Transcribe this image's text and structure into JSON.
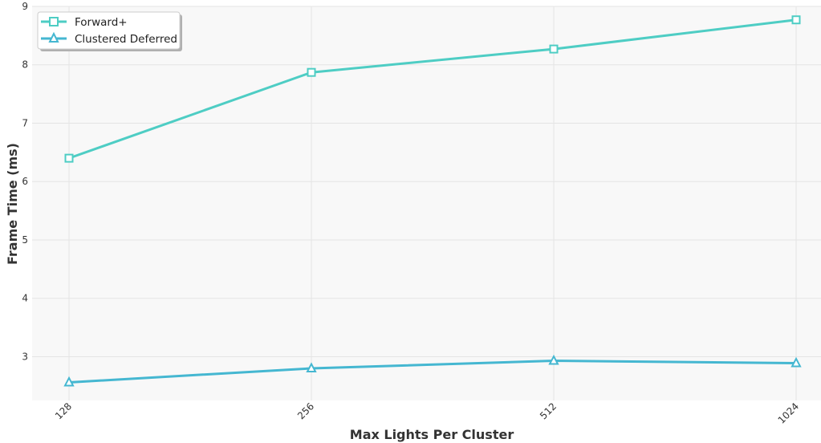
{
  "chart_data": {
    "type": "line",
    "title": "",
    "xlabel": "Max Lights Per Cluster",
    "ylabel": "Frame Time (ms)",
    "categories": [
      "128",
      "256",
      "512",
      "1024"
    ],
    "ylim": [
      2.25,
      9.0
    ],
    "yticks": [
      "3",
      "4",
      "5",
      "6",
      "7",
      "8",
      "9"
    ],
    "grid": true,
    "legend_position": "top-left",
    "series": [
      {
        "name": "Forward+",
        "values": [
          6.4,
          7.87,
          8.27,
          8.77
        ],
        "color": "#4ecdc4",
        "marker": "square"
      },
      {
        "name": "Clustered Deferred",
        "values": [
          2.56,
          2.8,
          2.93,
          2.89
        ],
        "color": "#45b7d1",
        "marker": "triangle"
      }
    ]
  }
}
